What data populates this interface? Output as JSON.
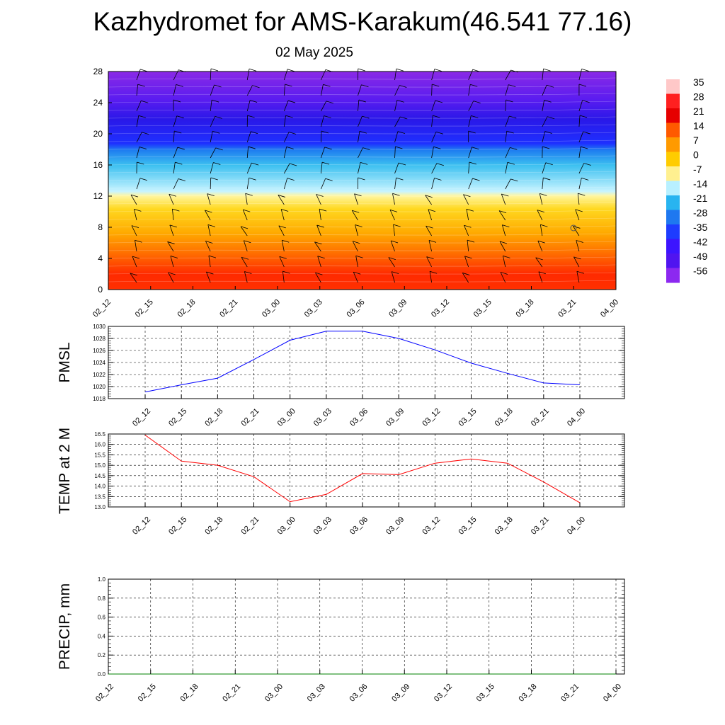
{
  "title": "Kazhydromet for AMS-Karakum(46.541 77.16)",
  "date": "02 May 2025",
  "time_labels": [
    "02_12",
    "02_15",
    "02_18",
    "02_21",
    "03_00",
    "03_03",
    "03_06",
    "03_09",
    "03_12",
    "03_15",
    "03_18",
    "03_21",
    "04_00"
  ],
  "chart_data": [
    {
      "type": "heatmap",
      "title": "",
      "x": [
        "02_12",
        "02_15",
        "02_18",
        "02_21",
        "03_00",
        "03_03",
        "03_06",
        "03_09",
        "03_12",
        "03_15",
        "03_18",
        "03_21",
        "04_00"
      ],
      "yticks": [
        "0",
        "4",
        "8",
        "12",
        "16",
        "20",
        "24",
        "28"
      ],
      "ylim": [
        0,
        28
      ],
      "colorbar": {
        "labels": [
          "35",
          "28",
          "21",
          "14",
          "7",
          "0",
          "-7",
          "-14",
          "-21",
          "-28",
          "-35",
          "-42",
          "-49",
          "-56"
        ],
        "colors": [
          "#ffc8c8",
          "#ff2020",
          "#e60000",
          "#ff5a00",
          "#ff9a00",
          "#ffcc00",
          "#fff090",
          "#b8f0ff",
          "#28b4f0",
          "#1e78f0",
          "#1e3cff",
          "#3c14ff",
          "#5014f0",
          "#8c28f0"
        ]
      },
      "grid": false,
      "legend": "right"
    },
    {
      "type": "line",
      "ylabel": "PMSL",
      "x": [
        "02_12",
        "02_15",
        "02_18",
        "02_21",
        "03_00",
        "03_03",
        "03_06",
        "03_09",
        "03_12",
        "03_15",
        "03_18",
        "03_21",
        "04_00"
      ],
      "series": [
        {
          "values": [
            1019.1,
            1020.3,
            1021.4,
            1024.5,
            1027.7,
            1029.2,
            1029.2,
            1028.0,
            1026.1,
            1023.9,
            1022.2,
            1020.6,
            1020.3
          ],
          "color": "#0000ff"
        }
      ],
      "yticks": [
        "1018",
        "1020",
        "1022",
        "1024",
        "1026",
        "1028",
        "1030"
      ],
      "ylim": [
        1018,
        1030
      ],
      "grid": true
    },
    {
      "type": "line",
      "ylabel": "TEMP at 2 M",
      "x": [
        "02_12",
        "02_15",
        "02_18",
        "02_21",
        "03_00",
        "03_03",
        "03_06",
        "03_09",
        "03_12",
        "03_15",
        "03_18",
        "03_21",
        "04_00"
      ],
      "series": [
        {
          "values": [
            16.45,
            15.2,
            15.0,
            14.45,
            13.25,
            13.6,
            14.6,
            14.55,
            15.1,
            15.3,
            15.1,
            14.2,
            13.2
          ],
          "color": "#ff0000"
        }
      ],
      "yticks": [
        "13.0",
        "13.5",
        "14.0",
        "14.5",
        "15.0",
        "15.5",
        "16.0",
        "16.5"
      ],
      "ylim": [
        13.0,
        16.5
      ],
      "grid": true
    },
    {
      "type": "line",
      "ylabel": "PRECIP, mm",
      "x": [
        "02_12",
        "02_15",
        "02_18",
        "02_21",
        "03_00",
        "03_03",
        "03_06",
        "03_09",
        "03_12",
        "03_15",
        "03_18",
        "03_21",
        "04_00"
      ],
      "series": [
        {
          "values": [
            0,
            0,
            0,
            0,
            0,
            0,
            0,
            0,
            0,
            0,
            0,
            0,
            0
          ],
          "color": "#008000"
        }
      ],
      "yticks": [
        "0.0",
        "0.2",
        "0.4",
        "0.6",
        "0.8",
        "1.0"
      ],
      "ylim": [
        0,
        1
      ],
      "grid": true
    }
  ]
}
